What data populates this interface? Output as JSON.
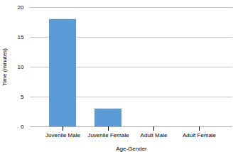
{
  "chart_data": {
    "type": "bar",
    "categories": [
      "Juvenile Male",
      "Juvenile Female",
      "Adult Male",
      "Adult Female"
    ],
    "values": [
      18,
      3,
      0,
      0
    ],
    "color": "#5b9bd5",
    "xlabel": "Age-Gender",
    "ylabel": "Time (minutes)",
    "ylim": [
      0,
      20
    ],
    "yticks": [
      0,
      5,
      10,
      15,
      20
    ],
    "grid": true
  }
}
